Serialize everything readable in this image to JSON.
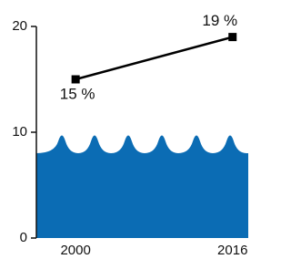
{
  "chart_data": {
    "type": "line",
    "x": [
      2000,
      2016
    ],
    "series": [
      {
        "color": "#000000",
        "values": [
          15,
          19
        ],
        "value_labels": [
          "15 %",
          "19 %"
        ]
      }
    ],
    "xlim": [
      1996,
      2017.6
    ],
    "xticks": [
      2000,
      2016
    ],
    "ylim": [
      0,
      20
    ],
    "yticks": [
      0,
      10,
      20
    ]
  }
}
